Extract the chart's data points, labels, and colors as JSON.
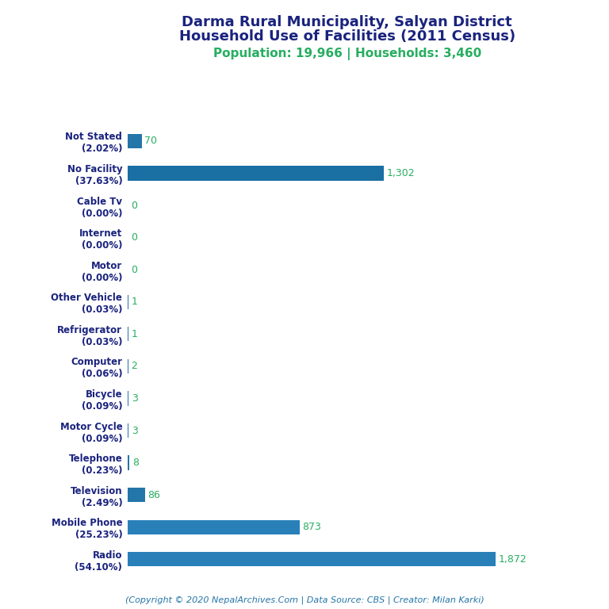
{
  "title_line1": "Darma Rural Municipality, Salyan District",
  "title_line2": "Household Use of Facilities (2011 Census)",
  "subtitle": "Population: 19,966 | Households: 3,460",
  "footer": "(Copyright © 2020 NepalArchives.Com | Data Source: CBS | Creator: Milan Karki)",
  "categories": [
    "Radio\n(54.10%)",
    "Mobile Phone\n(25.23%)",
    "Television\n(2.49%)",
    "Telephone\n(0.23%)",
    "Motor Cycle\n(0.09%)",
    "Bicycle\n(0.09%)",
    "Computer\n(0.06%)",
    "Refrigerator\n(0.03%)",
    "Other Vehicle\n(0.03%)",
    "Motor\n(0.00%)",
    "Internet\n(0.00%)",
    "Cable Tv\n(0.00%)",
    "No Facility\n(37.63%)",
    "Not Stated\n(2.02%)"
  ],
  "values": [
    1872,
    873,
    86,
    8,
    3,
    3,
    2,
    1,
    1,
    0,
    0,
    0,
    1302,
    70
  ],
  "bar_colors": [
    "#2980b9",
    "#2980b9",
    "#2475a8",
    "#2475a8",
    "#2475a8",
    "#2475a8",
    "#2475a8",
    "#2475a8",
    "#2475a8",
    "#2475a8",
    "#2475a8",
    "#2475a8",
    "#1a6fa3",
    "#2475a8"
  ],
  "value_color": "#27ae60",
  "title_color": "#1a237e",
  "subtitle_color": "#27ae60",
  "footer_color": "#2475a8",
  "background_color": "#ffffff",
  "xlim": [
    0,
    2200
  ]
}
